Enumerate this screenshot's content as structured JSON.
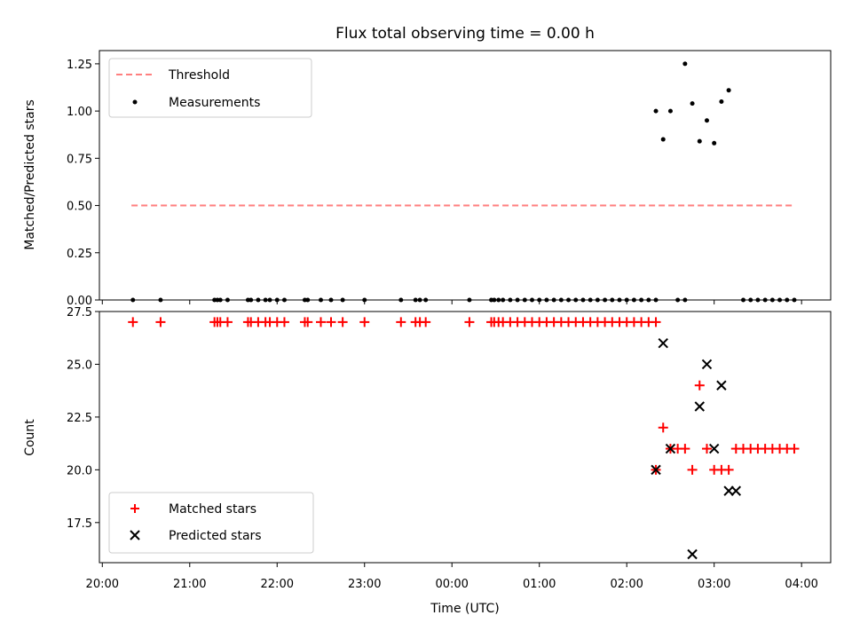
{
  "chart_data": [
    {
      "type": "scatter",
      "title": "Flux total observing time = 0.00 h",
      "xlabel": "",
      "ylabel": "Matched/Predicted stars",
      "xlim": [
        "19:58",
        "04:20"
      ],
      "ylim": [
        0,
        1.32
      ],
      "yticks": [
        "0.00",
        "0.25",
        "0.50",
        "0.75",
        "1.00",
        "1.25"
      ],
      "legend_position": "top-left",
      "threshold": {
        "name": "Threshold",
        "y": 0.5,
        "x_start": "20:20",
        "x_end": "03:55",
        "color": "#ff7f7f",
        "style": "dashed"
      },
      "series": [
        {
          "name": "Measurements",
          "color": "#000000",
          "x": [
            "20:21",
            "20:40",
            "21:17",
            "21:19",
            "21:21",
            "21:26",
            "21:40",
            "21:42",
            "21:47",
            "21:52",
            "21:55",
            "22:00",
            "22:05",
            "22:19",
            "22:21",
            "22:30",
            "22:37",
            "22:45",
            "23:00",
            "23:25",
            "23:35",
            "23:38",
            "23:42",
            "00:12",
            "00:27",
            "00:29",
            "00:32",
            "00:35",
            "00:40",
            "00:45",
            "00:50",
            "00:55",
            "01:00",
            "01:05",
            "01:10",
            "01:15",
            "01:20",
            "01:25",
            "01:30",
            "01:35",
            "01:40",
            "01:45",
            "01:50",
            "01:55",
            "02:00",
            "02:05",
            "02:10",
            "02:15",
            "02:20",
            "02:35",
            "02:40",
            "03:20",
            "03:25",
            "03:30",
            "03:35",
            "03:40",
            "03:45",
            "03:50",
            "03:55",
            "02:20",
            "02:25",
            "02:30",
            "02:40",
            "02:45",
            "02:50",
            "02:55",
            "03:00",
            "03:05",
            "03:10"
          ],
          "y": [
            0,
            0,
            0,
            0,
            0,
            0,
            0,
            0,
            0,
            0,
            0,
            0,
            0,
            0,
            0,
            0,
            0,
            0,
            0,
            0,
            0,
            0,
            0,
            0,
            0,
            0,
            0,
            0,
            0,
            0,
            0,
            0,
            0,
            0,
            0,
            0,
            0,
            0,
            0,
            0,
            0,
            0,
            0,
            0,
            0,
            0,
            0,
            0,
            0,
            0,
            0,
            0,
            0,
            0,
            0,
            0,
            0,
            0,
            0,
            1.0,
            0.85,
            1.0,
            1.25,
            1.04,
            0.84,
            0.95,
            0.83,
            1.05,
            1.11
          ]
        }
      ]
    },
    {
      "type": "scatter",
      "title": "",
      "xlabel": "Time (UTC)",
      "ylabel": "Count",
      "xlim": [
        "19:58",
        "04:20"
      ],
      "ylim": [
        15.6,
        27.5
      ],
      "yticks": [
        "17.5",
        "20.0",
        "22.5",
        "25.0",
        "27.5"
      ],
      "xticks": [
        "20:00",
        "21:00",
        "22:00",
        "23:00",
        "00:00",
        "01:00",
        "02:00",
        "03:00",
        "04:00"
      ],
      "legend_position": "bottom-left",
      "series": [
        {
          "name": "Matched stars",
          "color": "#ff0000",
          "marker": "plus",
          "x": [
            "20:21",
            "20:40",
            "21:17",
            "21:19",
            "21:21",
            "21:26",
            "21:40",
            "21:42",
            "21:47",
            "21:52",
            "21:55",
            "22:00",
            "22:05",
            "22:19",
            "22:21",
            "22:30",
            "22:37",
            "22:45",
            "23:00",
            "23:25",
            "23:35",
            "23:38",
            "23:42",
            "00:12",
            "00:27",
            "00:29",
            "00:32",
            "00:35",
            "00:40",
            "00:45",
            "00:50",
            "00:55",
            "01:00",
            "01:05",
            "01:10",
            "01:15",
            "01:20",
            "01:25",
            "01:30",
            "01:35",
            "01:40",
            "01:45",
            "01:50",
            "01:55",
            "02:00",
            "02:05",
            "02:10",
            "02:15",
            "02:20",
            "02:20",
            "02:25",
            "02:30",
            "02:35",
            "02:40",
            "02:45",
            "02:50",
            "02:55",
            "03:00",
            "03:05",
            "03:10",
            "03:15",
            "03:20",
            "03:25",
            "03:30",
            "03:35",
            "03:40",
            "03:45",
            "03:50",
            "03:55"
          ],
          "y": [
            27,
            27,
            27,
            27,
            27,
            27,
            27,
            27,
            27,
            27,
            27,
            27,
            27,
            27,
            27,
            27,
            27,
            27,
            27,
            27,
            27,
            27,
            27,
            27,
            27,
            27,
            27,
            27,
            27,
            27,
            27,
            27,
            27,
            27,
            27,
            27,
            27,
            27,
            27,
            27,
            27,
            27,
            27,
            27,
            27,
            27,
            27,
            27,
            27,
            20,
            22,
            21,
            21,
            21,
            20,
            24,
            21,
            20,
            20,
            20,
            21,
            21,
            21,
            21,
            21,
            21,
            21,
            21,
            21
          ]
        },
        {
          "name": "Predicted stars",
          "color": "#000000",
          "marker": "x",
          "x": [
            "02:20",
            "02:25",
            "02:30",
            "02:45",
            "02:50",
            "02:55",
            "03:00",
            "03:05",
            "03:10",
            "03:15"
          ],
          "y": [
            20,
            26,
            21,
            16,
            23,
            25,
            21,
            24,
            19,
            19
          ]
        }
      ]
    }
  ]
}
